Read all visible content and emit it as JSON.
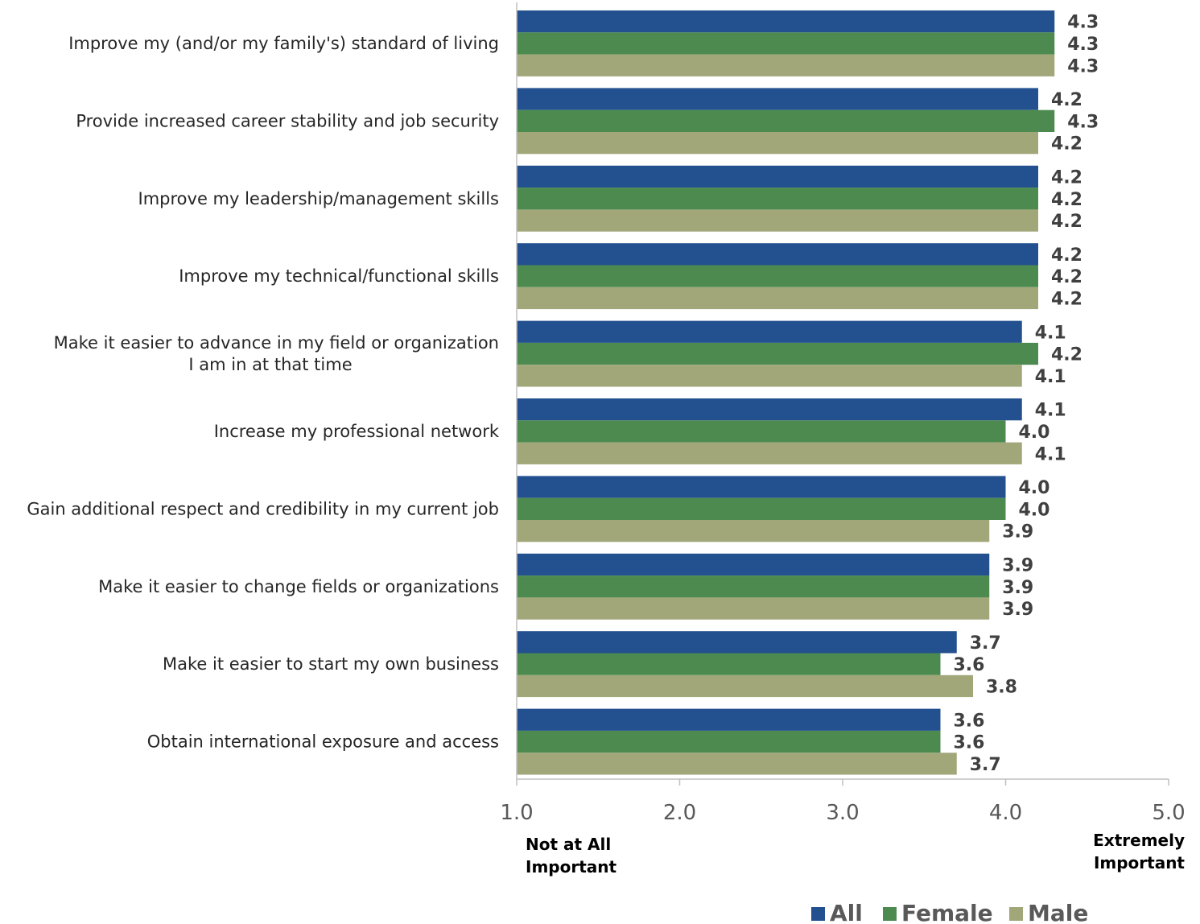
{
  "chart_data": {
    "type": "bar",
    "orientation": "horizontal",
    "categories": [
      [
        "Improve my (and/or my family's) standard of living"
      ],
      [
        "Provide increased career stability and job security"
      ],
      [
        "Improve my leadership/management skills"
      ],
      [
        "Improve my technical/functional skills"
      ],
      [
        "Make it easier to advance in my field or organization",
        "I am in at that time"
      ],
      [
        "Increase my professional network"
      ],
      [
        "Gain additional respect and credibility in my current job"
      ],
      [
        "Make it easier to change fields or organizations"
      ],
      [
        "Make it easier to start my own business"
      ],
      [
        "Obtain international exposure and access"
      ]
    ],
    "series": [
      {
        "name": "All",
        "color": "#23508F",
        "values": [
          4.3,
          4.2,
          4.2,
          4.2,
          4.1,
          4.1,
          4.0,
          3.9,
          3.7,
          3.6
        ]
      },
      {
        "name": "Female",
        "color": "#4C8A4F",
        "values": [
          4.3,
          4.3,
          4.2,
          4.2,
          4.2,
          4.0,
          4.0,
          3.9,
          3.6,
          3.6
        ]
      },
      {
        "name": "Male",
        "color": "#A2A77A",
        "values": [
          4.3,
          4.2,
          4.2,
          4.2,
          4.1,
          4.1,
          3.9,
          3.9,
          3.8,
          3.7
        ]
      }
    ],
    "xlim": [
      1.0,
      5.0
    ],
    "xticks": [
      "1.0",
      "2.0",
      "3.0",
      "4.0",
      "5.0"
    ],
    "x_anchor_labels": {
      "left": [
        "Not at All",
        "Important"
      ],
      "right": [
        "Extremely",
        "Important"
      ]
    },
    "title": "",
    "xlabel": "",
    "ylabel": "",
    "legend_position": "bottom-right",
    "grid": false
  }
}
